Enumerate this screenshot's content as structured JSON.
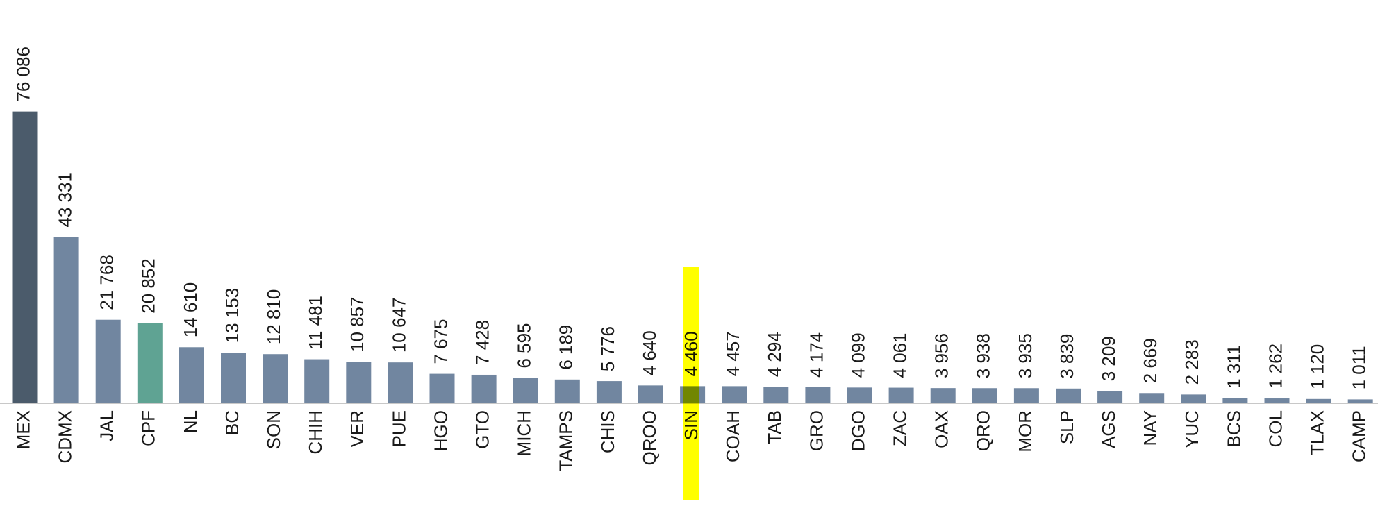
{
  "chart_data": {
    "type": "bar",
    "categories": [
      "MEX",
      "CDMX",
      "JAL",
      "CPF",
      "NL",
      "BC",
      "SON",
      "CHIH",
      "VER",
      "PUE",
      "HGO",
      "GTO",
      "MICH",
      "TAMPS",
      "CHIS",
      "QROO",
      "SIN",
      "COAH",
      "TAB",
      "GRO",
      "DGO",
      "ZAC",
      "OAX",
      "QRO",
      "MOR",
      "SLP",
      "AGS",
      "NAY",
      "YUC",
      "BCS",
      "COL",
      "TLAX",
      "CAMP"
    ],
    "values": [
      76086,
      43331,
      21768,
      20852,
      14610,
      13153,
      12810,
      11481,
      10857,
      10647,
      7675,
      7428,
      6595,
      6189,
      5776,
      4640,
      4460,
      4457,
      4294,
      4174,
      4099,
      4061,
      3956,
      3938,
      3935,
      3839,
      3209,
      2669,
      2283,
      1311,
      1262,
      1120,
      1011
    ],
    "value_labels": [
      "76 086",
      "43 331",
      "21 768",
      "20 852",
      "14 610",
      "13 153",
      "12 810",
      "11 481",
      "10 857",
      "10 647",
      "7 675",
      "7 428",
      "6 595",
      "6 189",
      "5 776",
      "4 640",
      "4 460",
      "4 457",
      "4 294",
      "4 174",
      "4 099",
      "4 061",
      "3 956",
      "3 938",
      "3 935",
      "3 839",
      "3 209",
      "2 669",
      "2 283",
      "1 311",
      "1 262",
      "1 120",
      "1 011"
    ],
    "colors": [
      "#4b5b6b",
      "#7186a0",
      "#7186a0",
      "#5fa393",
      "#7186a0",
      "#7186a0",
      "#7186a0",
      "#7186a0",
      "#7186a0",
      "#7186a0",
      "#7186a0",
      "#7186a0",
      "#7186a0",
      "#7186a0",
      "#7186a0",
      "#7186a0",
      "#7186a0",
      "#7186a0",
      "#7186a0",
      "#7186a0",
      "#7186a0",
      "#7186a0",
      "#7186a0",
      "#7186a0",
      "#7186a0",
      "#7186a0",
      "#7186a0",
      "#7186a0",
      "#7186a0",
      "#7186a0",
      "#7186a0",
      "#7186a0",
      "#7186a0"
    ],
    "ylim": [
      0,
      80000
    ]
  }
}
